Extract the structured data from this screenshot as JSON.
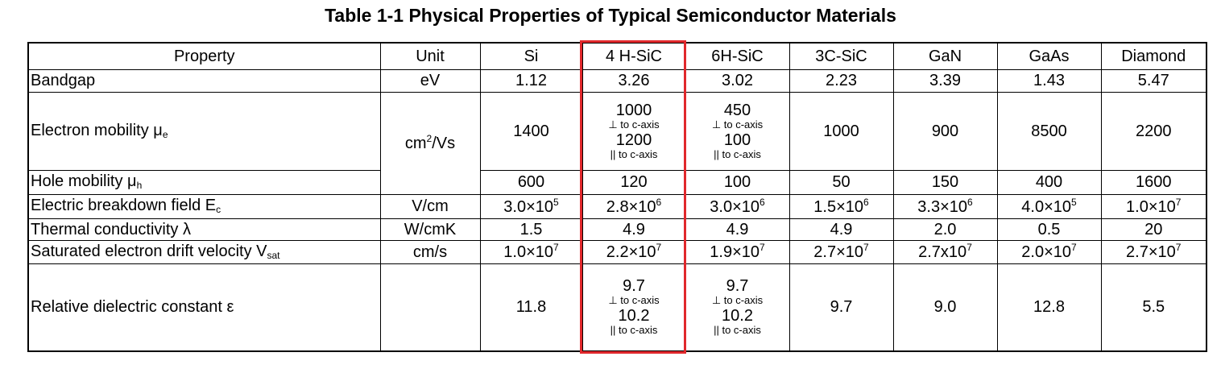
{
  "title": "Table 1-1 Physical Properties of Typical Semiconductor Materials",
  "table": {
    "header": [
      "Property",
      "Unit",
      "Si",
      "4 H-SiC",
      "6H-SiC",
      "3C-SiC",
      "GaN",
      "GaAs",
      "Diamond"
    ],
    "rows": [
      {
        "property": {
          "text": "Bandgap"
        },
        "unit": "eV",
        "values": [
          "1.12",
          "3.26",
          "3.02",
          "2.23",
          "3.39",
          "1.43",
          "5.47"
        ]
      },
      {
        "property": {
          "text": "Electron mobility  μ",
          "sub": "e"
        },
        "unit": {
          "base": "cm",
          "sup": "2",
          "rest": "/Vs"
        },
        "values": [
          "1400",
          {
            "lines": [
              "1000",
              "⊥ to c-axis",
              "1200",
              "|| to c-axis"
            ]
          },
          {
            "lines": [
              "450",
              "⊥ to c-axis",
              "100",
              "|| to c-axis"
            ]
          },
          "1000",
          "900",
          "8500",
          "2200"
        ]
      },
      {
        "property": {
          "text": "Hole mobility  μ",
          "sub": "h"
        },
        "values": [
          "600",
          "120",
          "100",
          "50",
          "150",
          "400",
          "1600"
        ]
      },
      {
        "property": {
          "text": "Electric breakdown field  E",
          "sub": "c"
        },
        "unit": "V/cm",
        "values": [
          {
            "base": "3.0×10",
            "sup": "5"
          },
          {
            "base": "2.8×10",
            "sup": "6"
          },
          {
            "base": "3.0×10",
            "sup": "6"
          },
          {
            "base": "1.5×10",
            "sup": "6"
          },
          {
            "base": "3.3×10",
            "sup": "6"
          },
          {
            "base": "4.0×10",
            "sup": "5"
          },
          {
            "base": "1.0×10",
            "sup": "7"
          }
        ]
      },
      {
        "property": {
          "text": "Thermal conductivity λ"
        },
        "unit": "W/cmK",
        "values": [
          "1.5",
          "4.9",
          "4.9",
          "4.9",
          "2.0",
          "0.5",
          "20"
        ]
      },
      {
        "property": {
          "text": "Saturated electron drift velocity  V",
          "sub": "sat"
        },
        "unit": "cm/s",
        "values": [
          {
            "base": "1.0×10",
            "sup": "7"
          },
          {
            "base": "2.2×10",
            "sup": "7"
          },
          {
            "base": "1.9×10",
            "sup": "7"
          },
          {
            "base": "2.7×10",
            "sup": "7"
          },
          {
            "base": "2.7x10",
            "sup": "7"
          },
          {
            "base": "2.0×10",
            "sup": "7"
          },
          {
            "base": "2.7×10",
            "sup": "7"
          }
        ]
      },
      {
        "property": {
          "text": "Relative dielectric constant  ε"
        },
        "values": [
          "11.8",
          {
            "lines": [
              "9.7",
              "⊥ to c-axis",
              "10.2",
              "|| to c-axis"
            ]
          },
          {
            "lines": [
              "9.7",
              "⊥ to c-axis",
              "10.2",
              "|| to c-axis"
            ]
          },
          "9.7",
          "9.0",
          "12.8",
          "5.5"
        ]
      }
    ]
  }
}
